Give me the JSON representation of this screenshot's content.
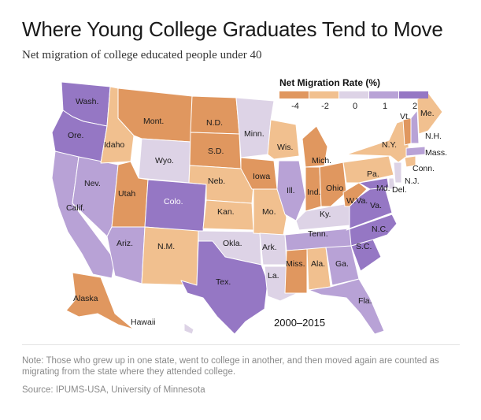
{
  "title": "Where Young College Graduates Tend to Move",
  "subtitle": "Net migration of college educated people under 40",
  "legend": {
    "title": "Net Migration Rate (%)",
    "ticks": [
      "-4",
      "-2",
      "0",
      "1",
      "2"
    ],
    "colors": [
      "#e0975f",
      "#f1c08f",
      "#ddd3e6",
      "#b8a2d6",
      "#9577c4"
    ]
  },
  "period": "2000–2015",
  "note": "Note: Those who grew up in one state, went to college in another, and then moved again are counted as migrating from the state where they attended college.",
  "source": "Source: IPUMS-USA, University of Minnesota",
  "states": [
    {
      "label": "Wash.",
      "category": 4
    },
    {
      "label": "Ore.",
      "category": 4
    },
    {
      "label": "Calif.",
      "category": 3
    },
    {
      "label": "Nev.",
      "category": 3
    },
    {
      "label": "Idaho",
      "category": 1
    },
    {
      "label": "Mont.",
      "category": 0
    },
    {
      "label": "Wyo.",
      "category": 2
    },
    {
      "label": "Utah",
      "category": 0
    },
    {
      "label": "Colo.",
      "category": 4
    },
    {
      "label": "Ariz.",
      "category": 3
    },
    {
      "label": "N.M.",
      "category": 1
    },
    {
      "label": "N.D.",
      "category": 0
    },
    {
      "label": "S.D.",
      "category": 0
    },
    {
      "label": "Neb.",
      "category": 1
    },
    {
      "label": "Kan.",
      "category": 1
    },
    {
      "label": "Okla.",
      "category": 2
    },
    {
      "label": "Tex.",
      "category": 4
    },
    {
      "label": "Minn.",
      "category": 2
    },
    {
      "label": "Iowa",
      "category": 0
    },
    {
      "label": "Mo.",
      "category": 1
    },
    {
      "label": "Ark.",
      "category": 2
    },
    {
      "label": "La.",
      "category": 2
    },
    {
      "label": "Wis.",
      "category": 1
    },
    {
      "label": "Ill.",
      "category": 3
    },
    {
      "label": "Mich.",
      "category": 0
    },
    {
      "label": "Ind.",
      "category": 0
    },
    {
      "label": "Ohio",
      "category": 0
    },
    {
      "label": "Ky.",
      "category": 2
    },
    {
      "label": "Tenn.",
      "category": 3
    },
    {
      "label": "Miss.",
      "category": 0
    },
    {
      "label": "Ala.",
      "category": 1
    },
    {
      "label": "Ga.",
      "category": 3
    },
    {
      "label": "Fla.",
      "category": 3
    },
    {
      "label": "S.C.",
      "category": 4
    },
    {
      "label": "N.C.",
      "category": 4
    },
    {
      "label": "Va.",
      "category": 4
    },
    {
      "label": "W.Va.",
      "category": 0
    },
    {
      "label": "Md.",
      "category": 4
    },
    {
      "label": "Del.",
      "category": 2
    },
    {
      "label": "Pa.",
      "category": 1
    },
    {
      "label": "N.J.",
      "category": 2
    },
    {
      "label": "N.Y.",
      "category": 1
    },
    {
      "label": "Conn.",
      "category": 1
    },
    {
      "label": "Mass.",
      "category": 3
    },
    {
      "label": "Vt.",
      "category": 0
    },
    {
      "label": "N.H.",
      "category": 3
    },
    {
      "label": "Me.",
      "category": 1
    },
    {
      "label": "Alaska",
      "category": 0
    },
    {
      "label": "Hawaii",
      "category": 2
    }
  ]
}
